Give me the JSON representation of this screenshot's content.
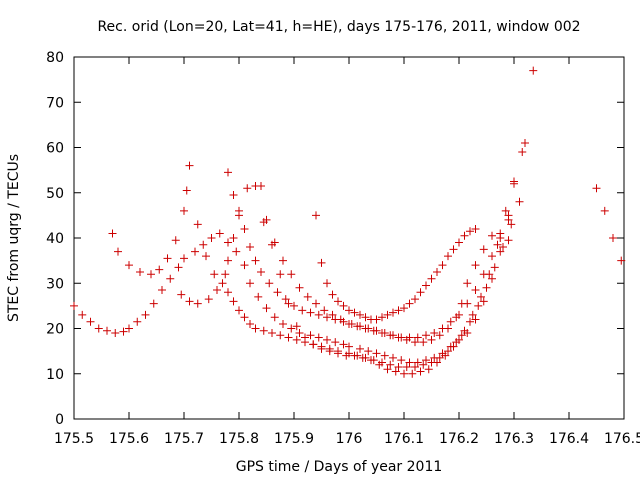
{
  "chart_data": {
    "type": "scatter",
    "title": "Rec. orid (Lon=20, Lat=41, h=HE), days 175-176, 2011, window 002",
    "xlabel": "GPS time / Days of year 2011",
    "ylabel": "STEC from uqrg / TECUs",
    "xlim": [
      175.5,
      176.5
    ],
    "ylim": [
      0,
      80
    ],
    "xticks": [
      175.5,
      175.6,
      175.7,
      175.8,
      175.9,
      176,
      176.1,
      176.2,
      176.3,
      176.4,
      176.5
    ],
    "xtick_labels": [
      "175.5",
      "175.6",
      "175.7",
      "175.8",
      "175.9",
      "176",
      "176.1",
      "176.2",
      "176.3",
      "176.4",
      "176.5"
    ],
    "yticks": [
      0,
      10,
      20,
      30,
      40,
      50,
      60,
      70,
      80
    ],
    "ytick_labels": [
      "0",
      "10",
      "20",
      "30",
      "40",
      "50",
      "60",
      "70",
      "80"
    ],
    "grid": false,
    "marker": "+",
    "color": "#cc0000",
    "series": [
      {
        "x": [
          175.5,
          175.515,
          175.53,
          175.545,
          175.56,
          175.575,
          175.59,
          175.6,
          175.615,
          175.63,
          175.645,
          175.66,
          175.675,
          175.69,
          175.7,
          175.72,
          175.735,
          175.75,
          175.765,
          175.78,
          175.795,
          175.81,
          175.82,
          175.835,
          175.85,
          175.865,
          175.88,
          175.895,
          175.91,
          175.93,
          175.945,
          175.96,
          175.975,
          175.99,
          176.0,
          176.02,
          176.035,
          176.05,
          176.065,
          176.08,
          176.095,
          176.11,
          176.125,
          176.14,
          176.155,
          176.17,
          176.185,
          176.2,
          176.215,
          176.23,
          176.245,
          176.26,
          176.275,
          176.29,
          176.3,
          176.315
        ],
        "y": [
          25,
          23,
          21.5,
          20,
          19.5,
          19,
          19.3,
          20,
          21.5,
          23,
          25.5,
          28.5,
          31,
          33.5,
          35.5,
          37,
          38.5,
          40,
          41,
          39,
          37,
          34,
          30,
          27,
          24.5,
          22.5,
          21,
          20,
          19,
          18.5,
          18,
          17.5,
          17,
          16.5,
          16,
          15.5,
          15,
          14.5,
          14,
          13.5,
          13,
          12.5,
          12.5,
          13,
          13.5,
          14.5,
          16,
          17.5,
          19,
          22,
          26,
          31,
          37,
          44,
          52,
          59
        ]
      },
      {
        "x": [
          175.57,
          175.58,
          175.6,
          175.62,
          175.64,
          175.655,
          175.67,
          175.685,
          175.7,
          175.705,
          175.71,
          175.725,
          175.74,
          175.755,
          175.77,
          175.78,
          175.79,
          175.8,
          175.81,
          175.82,
          175.83,
          175.845,
          175.86,
          175.875,
          175.89,
          175.905,
          175.92,
          175.935,
          175.95,
          175.965,
          175.98,
          176.0,
          176.015,
          176.03,
          176.045,
          176.06,
          176.075,
          176.09,
          176.105,
          176.12,
          176.135,
          176.15,
          176.165,
          176.18,
          176.195,
          176.21,
          176.225,
          176.24,
          176.255,
          176.27,
          176.285,
          176.3,
          176.32,
          176.335
        ],
        "y": [
          41,
          37,
          34,
          32.5,
          32,
          33,
          35.5,
          39.5,
          46,
          50.5,
          56,
          43,
          36,
          32,
          30,
          28,
          26,
          24,
          22.5,
          21,
          20,
          19.5,
          19,
          18.5,
          18,
          17.5,
          17,
          16.5,
          16,
          15.5,
          15,
          14.5,
          14,
          13.5,
          13,
          12.5,
          12,
          11.5,
          11.5,
          11.5,
          12,
          12.5,
          13.5,
          15,
          17,
          19.5,
          23,
          27,
          32,
          38.5,
          46,
          52.5,
          61,
          77
        ]
      },
      {
        "x": [
          175.695,
          175.71,
          175.725,
          175.745,
          175.76,
          175.775,
          175.78,
          175.79,
          175.8,
          175.815,
          175.83,
          175.845,
          175.86,
          175.875,
          175.89,
          175.905,
          175.92,
          175.935,
          175.95,
          175.965,
          175.98,
          175.995,
          176.01,
          176.025,
          176.04,
          176.055,
          176.07,
          176.085,
          176.1,
          176.115,
          176.13,
          176.145,
          176.16,
          176.175,
          176.19,
          176.205,
          176.22,
          176.235,
          176.25,
          176.265,
          176.28,
          176.295,
          176.31
        ],
        "y": [
          27.5,
          26,
          25.5,
          26.5,
          28.5,
          32,
          35,
          40,
          45,
          51,
          51.5,
          43.5,
          38.5,
          32,
          25.5,
          20.5,
          18,
          16.5,
          15.5,
          15,
          14.5,
          14,
          14,
          13.5,
          13,
          12,
          11,
          10.5,
          10,
          10,
          10.5,
          11,
          12.5,
          14,
          16,
          18.5,
          21.5,
          25,
          29,
          33.5,
          38,
          43,
          48
        ]
      },
      {
        "x": [
          175.78,
          175.79,
          175.8,
          175.81,
          175.82,
          175.83,
          175.84,
          175.855,
          175.87,
          175.885,
          175.9,
          175.915,
          175.93,
          175.945,
          175.96,
          175.975,
          175.99,
          176.005,
          176.02,
          176.035,
          176.05,
          176.065,
          176.08,
          176.095,
          176.11,
          176.125,
          176.14,
          176.155,
          176.17,
          176.185,
          176.2,
          176.215,
          176.23,
          176.245,
          176.26,
          176.275,
          176.29
        ],
        "y": [
          54.5,
          49.5,
          46,
          42,
          38,
          35,
          32.5,
          30,
          28,
          26.5,
          25,
          24,
          23.5,
          23,
          22.5,
          22,
          21.5,
          21,
          20.5,
          20,
          19.5,
          19,
          18.5,
          18,
          18,
          18,
          18.5,
          19,
          20,
          21.5,
          23,
          25.5,
          28.5,
          32,
          36,
          40,
          45
        ]
      },
      {
        "x": [
          175.84,
          175.85,
          175.865,
          175.88,
          175.895,
          175.91,
          175.925,
          175.94,
          175.955,
          175.97,
          175.985,
          176.0,
          176.015,
          176.03,
          176.045,
          176.06,
          176.075,
          176.09,
          176.105,
          176.12,
          176.135,
          176.15,
          176.165,
          176.18,
          176.195,
          176.205,
          176.215,
          176.23,
          176.245,
          176.26,
          176.275,
          176.29
        ],
        "y": [
          51.5,
          44,
          39,
          35,
          32,
          29,
          27,
          25.5,
          24,
          23,
          22,
          21,
          20.5,
          20,
          19.5,
          19,
          18.5,
          18,
          17.5,
          17,
          17,
          17.5,
          18.5,
          20,
          22.5,
          25.5,
          30,
          34,
          37.5,
          40.5,
          41,
          39.5
        ]
      },
      {
        "x": [
          175.94,
          175.95,
          175.96,
          175.97,
          175.98,
          175.99,
          176.0,
          176.01,
          176.02,
          176.03,
          176.04,
          176.05,
          176.06,
          176.07,
          176.08,
          176.09,
          176.1,
          176.11,
          176.12,
          176.13,
          176.14,
          176.15,
          176.16,
          176.17,
          176.18,
          176.19,
          176.2,
          176.21,
          176.22,
          176.23
        ],
        "y": [
          45,
          34.5,
          30,
          27.5,
          26,
          25,
          24,
          23.5,
          23,
          22.5,
          22,
          22,
          22.5,
          23,
          23.5,
          24,
          24.5,
          25.5,
          26.5,
          28,
          29.5,
          31,
          32.5,
          34,
          36,
          37.5,
          39,
          40.5,
          41.5,
          42
        ]
      },
      {
        "x": [
          176.45,
          176.465,
          176.48,
          176.495
        ],
        "y": [
          51,
          46,
          40,
          35
        ]
      }
    ]
  }
}
